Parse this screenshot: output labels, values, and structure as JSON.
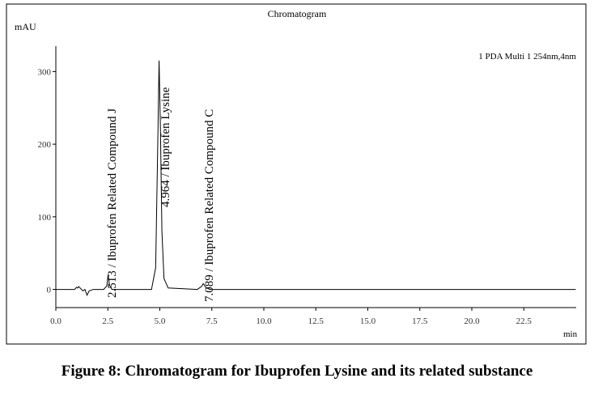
{
  "chart_data": {
    "type": "line",
    "title": "Chromatogram",
    "y_unit": "mAU",
    "x_unit": "min",
    "detector": "1 PDA Multi 1 254nm,4nm",
    "caption": "Figure 8: Chromatogram for Ibuprofen Lysine and its related substance",
    "annotations": [
      "2.513 / Ibuprofen Related Compound J",
      "4.964 / Ibuprofen Lysine",
      "7.089 / Ibuprofen Related Compound C"
    ],
    "color": "#000000",
    "x": [
      0,
      0.9,
      1.0,
      1.05,
      1.1,
      1.2,
      1.3,
      1.4,
      1.5,
      1.6,
      1.8,
      2.3,
      2.45,
      2.513,
      2.58,
      2.7,
      3.0,
      4.6,
      4.8,
      4.9,
      4.964,
      5.03,
      5.1,
      5.2,
      5.4,
      6.8,
      7.0,
      7.089,
      7.2,
      7.4,
      25
    ],
    "values": [
      0,
      0,
      3,
      2,
      4,
      1,
      -2,
      0,
      -8,
      -2,
      0,
      0,
      5,
      20,
      6,
      0,
      0,
      0,
      30,
      200,
      315,
      220,
      80,
      15,
      2,
      0,
      4,
      8,
      3,
      0,
      0
    ],
    "xlim": [
      0,
      25
    ],
    "ylim": [
      -25,
      335
    ],
    "xticks": [
      {
        "value": 0,
        "label": "0.0"
      },
      2.5,
      {
        "value": 5,
        "label": "5.0"
      },
      7.5,
      {
        "value": 10,
        "label": "10.0"
      },
      12.5,
      {
        "value": 15,
        "label": "15.0"
      },
      17.5,
      {
        "value": 20,
        "label": "20.0"
      },
      22.5
    ],
    "yticks": [
      0,
      100,
      200,
      300
    ],
    "grid": false
  }
}
